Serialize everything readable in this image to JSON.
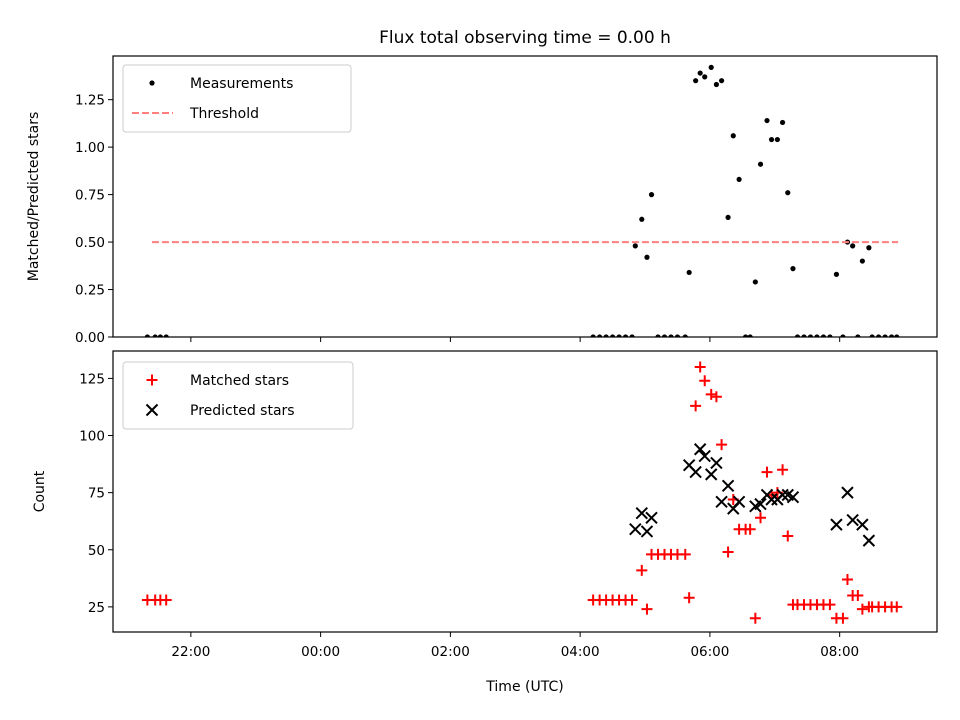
{
  "chart_data": {
    "title": "Flux total observing time = 0.00 h",
    "x_axis": {
      "label": "Time (UTC)",
      "unit": "hours (relative to 00:00 UTC)",
      "range": [
        -3.2,
        9.5
      ],
      "ticks": [
        {
          "value": -2,
          "label": "22:00"
        },
        {
          "value": 0,
          "label": "00:00"
        },
        {
          "value": 2,
          "label": "02:00"
        },
        {
          "value": 4,
          "label": "04:00"
        },
        {
          "value": 6,
          "label": "06:00"
        },
        {
          "value": 8,
          "label": "08:00"
        }
      ]
    },
    "panels": [
      {
        "type": "scatter",
        "ylabel": "Matched/Predicted stars",
        "ylim": [
          0,
          1.48
        ],
        "y_ticks": [
          {
            "value": 0,
            "label": "0.00"
          },
          {
            "value": 0.25,
            "label": "0.25"
          },
          {
            "value": 0.5,
            "label": "0.50"
          },
          {
            "value": 0.75,
            "label": "0.75"
          },
          {
            "value": 1.0,
            "label": "1.00"
          },
          {
            "value": 1.25,
            "label": "1.25"
          }
        ],
        "legend": {
          "position": "upper-left",
          "entries": [
            {
              "label": "Measurements",
              "marker": "dot",
              "color": "#000000"
            },
            {
              "label": "Threshold",
              "marker": "dashed-line",
              "color": "#ff7f7f"
            }
          ]
        },
        "series": [
          {
            "name": "Measurements",
            "color": "#000000",
            "marker": "dot",
            "points": [
              [
                -2.67,
                0
              ],
              [
                -2.55,
                0
              ],
              [
                -2.47,
                0
              ],
              [
                -2.38,
                0
              ],
              [
                4.2,
                0
              ],
              [
                4.3,
                0
              ],
              [
                4.4,
                0
              ],
              [
                4.5,
                0
              ],
              [
                4.6,
                0
              ],
              [
                4.7,
                0
              ],
              [
                4.8,
                0
              ],
              [
                4.85,
                0.48
              ],
              [
                4.95,
                0.62
              ],
              [
                5.03,
                0.42
              ],
              [
                5.1,
                0.75
              ],
              [
                5.2,
                0
              ],
              [
                5.3,
                0
              ],
              [
                5.4,
                0
              ],
              [
                5.5,
                0
              ],
              [
                5.62,
                0
              ],
              [
                5.68,
                0.34
              ],
              [
                5.78,
                1.35
              ],
              [
                5.85,
                1.39
              ],
              [
                5.92,
                1.37
              ],
              [
                6.02,
                1.42
              ],
              [
                6.1,
                1.33
              ],
              [
                6.18,
                1.35
              ],
              [
                6.28,
                0.63
              ],
              [
                6.36,
                1.06
              ],
              [
                6.45,
                0.83
              ],
              [
                6.55,
                0
              ],
              [
                6.62,
                0
              ],
              [
                6.7,
                0.29
              ],
              [
                6.78,
                0.91
              ],
              [
                6.88,
                1.14
              ],
              [
                6.95,
                1.04
              ],
              [
                7.04,
                1.04
              ],
              [
                7.12,
                1.13
              ],
              [
                7.2,
                0.76
              ],
              [
                7.28,
                0.36
              ],
              [
                7.35,
                0
              ],
              [
                7.45,
                0
              ],
              [
                7.55,
                0
              ],
              [
                7.65,
                0
              ],
              [
                7.75,
                0
              ],
              [
                7.85,
                0
              ],
              [
                7.95,
                0.33
              ],
              [
                8.05,
                0
              ],
              [
                8.12,
                0.5
              ],
              [
                8.2,
                0.48
              ],
              [
                8.28,
                0
              ],
              [
                8.35,
                0.4
              ],
              [
                8.45,
                0.47
              ],
              [
                8.5,
                0
              ],
              [
                8.6,
                0
              ],
              [
                8.7,
                0
              ],
              [
                8.8,
                0
              ],
              [
                8.88,
                0
              ]
            ]
          },
          {
            "name": "Threshold",
            "color": "#ff7f7f",
            "style": "dashed",
            "x": [
              -2.6,
              8.9
            ],
            "y": [
              0.5,
              0.5
            ]
          }
        ]
      },
      {
        "type": "scatter",
        "ylabel": "Count",
        "ylim": [
          14,
          137
        ],
        "y_ticks": [
          {
            "value": 25,
            "label": "25"
          },
          {
            "value": 50,
            "label": "50"
          },
          {
            "value": 75,
            "label": "75"
          },
          {
            "value": 100,
            "label": "100"
          },
          {
            "value": 125,
            "label": "125"
          }
        ],
        "legend": {
          "position": "upper-left",
          "entries": [
            {
              "label": "Matched stars",
              "marker": "plus",
              "color": "#ff0000"
            },
            {
              "label": "Predicted stars",
              "marker": "x",
              "color": "#000000"
            }
          ]
        },
        "series": [
          {
            "name": "Matched stars",
            "color": "#ff0000",
            "marker": "plus",
            "points": [
              [
                -2.67,
                28
              ],
              [
                -2.55,
                28
              ],
              [
                -2.47,
                28
              ],
              [
                -2.38,
                28
              ],
              [
                4.2,
                28
              ],
              [
                4.3,
                28
              ],
              [
                4.4,
                28
              ],
              [
                4.5,
                28
              ],
              [
                4.6,
                28
              ],
              [
                4.7,
                28
              ],
              [
                4.8,
                28
              ],
              [
                4.95,
                41
              ],
              [
                5.03,
                24
              ],
              [
                5.1,
                48
              ],
              [
                5.2,
                48
              ],
              [
                5.3,
                48
              ],
              [
                5.4,
                48
              ],
              [
                5.5,
                48
              ],
              [
                5.62,
                48
              ],
              [
                5.68,
                29
              ],
              [
                5.78,
                113
              ],
              [
                5.85,
                130
              ],
              [
                5.92,
                124
              ],
              [
                6.02,
                118
              ],
              [
                6.1,
                117
              ],
              [
                6.18,
                96
              ],
              [
                6.28,
                49
              ],
              [
                6.36,
                72
              ],
              [
                6.45,
                59
              ],
              [
                6.55,
                59
              ],
              [
                6.62,
                59
              ],
              [
                6.7,
                20
              ],
              [
                6.78,
                64
              ],
              [
                6.88,
                84
              ],
              [
                6.95,
                74
              ],
              [
                7.04,
                75
              ],
              [
                7.12,
                85
              ],
              [
                7.2,
                56
              ],
              [
                7.28,
                26
              ],
              [
                7.35,
                26
              ],
              [
                7.45,
                26
              ],
              [
                7.55,
                26
              ],
              [
                7.65,
                26
              ],
              [
                7.75,
                26
              ],
              [
                7.85,
                26
              ],
              [
                7.95,
                20
              ],
              [
                8.05,
                20
              ],
              [
                8.12,
                37
              ],
              [
                8.2,
                30
              ],
              [
                8.28,
                30
              ],
              [
                8.35,
                24
              ],
              [
                8.45,
                25
              ],
              [
                8.5,
                25
              ],
              [
                8.6,
                25
              ],
              [
                8.7,
                25
              ],
              [
                8.8,
                25
              ],
              [
                8.88,
                25
              ]
            ]
          },
          {
            "name": "Predicted stars",
            "color": "#000000",
            "marker": "x",
            "points": [
              [
                4.85,
                59
              ],
              [
                4.95,
                66
              ],
              [
                5.03,
                58
              ],
              [
                5.1,
                64
              ],
              [
                5.68,
                87
              ],
              [
                5.78,
                84
              ],
              [
                5.85,
                94
              ],
              [
                5.92,
                91
              ],
              [
                6.02,
                83
              ],
              [
                6.1,
                88
              ],
              [
                6.18,
                71
              ],
              [
                6.28,
                78
              ],
              [
                6.36,
                68
              ],
              [
                6.45,
                71
              ],
              [
                6.7,
                69
              ],
              [
                6.78,
                70
              ],
              [
                6.88,
                74
              ],
              [
                6.95,
                72
              ],
              [
                7.04,
                72
              ],
              [
                7.12,
                74
              ],
              [
                7.2,
                74
              ],
              [
                7.28,
                73
              ],
              [
                7.95,
                61
              ],
              [
                8.12,
                75
              ],
              [
                8.2,
                63
              ],
              [
                8.35,
                61
              ],
              [
                8.45,
                54
              ]
            ]
          }
        ]
      }
    ]
  }
}
